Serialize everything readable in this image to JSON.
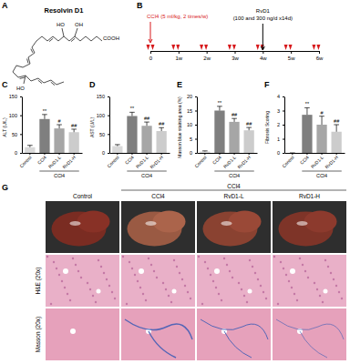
{
  "panel_labels": [
    "A",
    "B",
    "C",
    "D",
    "E",
    "F",
    "G"
  ],
  "structure": {
    "name": "Resolvin D1",
    "groups": [
      "HO",
      "OH",
      "HO",
      "COOH"
    ]
  },
  "timeline": {
    "agent1": "CCl4",
    "agent1_dose": "(5 ml/kg, 2 times/w)",
    "agent2": "RvD1",
    "agent2_dose": "(100 and 300 ng/d x14d)",
    "xlim": [
      0,
      6
    ],
    "xticks": [
      {
        "value": 0,
        "label": "0"
      },
      {
        "value": 1,
        "label": "1w"
      },
      {
        "value": 2,
        "label": "2w"
      },
      {
        "value": 3,
        "label": "3w"
      },
      {
        "value": 4,
        "label": "4w"
      },
      {
        "value": 5,
        "label": "5w"
      },
      {
        "value": 6,
        "label": "6w"
      }
    ],
    "injections": [
      0,
      0.9,
      1.9,
      2.9,
      3.9,
      4.9,
      5.9
    ],
    "treatment_start": 4
  },
  "chart_data": [
    {
      "type": "bar",
      "y_label": "ALT (U/L)",
      "categories": [
        "Control",
        "CCl4",
        "RvD1-L",
        "RvD1-H"
      ],
      "group_label": "CCl4",
      "values": [
        15,
        90,
        65,
        55
      ],
      "errors": [
        5,
        12,
        10,
        8
      ],
      "colors": [
        "#d9d9d9",
        "#7f7f7f",
        "#a6a6a6",
        "#cccccc"
      ],
      "ylim": [
        0,
        150
      ],
      "yticks": [
        0,
        50,
        100,
        150
      ],
      "significance": [
        null,
        "**",
        "#",
        "##"
      ]
    },
    {
      "type": "bar",
      "y_label": "AST (U/L)",
      "categories": [
        "Control",
        "CCl4",
        "RvD1-L",
        "RvD1-H"
      ],
      "group_label": "CCl4",
      "values": [
        18,
        98,
        72,
        58
      ],
      "errors": [
        4,
        10,
        10,
        9
      ],
      "colors": [
        "#d9d9d9",
        "#7f7f7f",
        "#a6a6a6",
        "#cccccc"
      ],
      "ylim": [
        0,
        150
      ],
      "yticks": [
        0,
        50,
        100,
        150
      ],
      "significance": [
        null,
        "**",
        "##",
        "##"
      ]
    },
    {
      "type": "bar",
      "y_label": "Masson blue staining area (%)",
      "categories": [
        "Control",
        "CCl4",
        "RvD1-L",
        "RvD1-H"
      ],
      "group_label": "CCl4",
      "values": [
        0.5,
        15,
        11,
        8
      ],
      "errors": [
        0.2,
        1.5,
        1.2,
        1
      ],
      "colors": [
        "#d9d9d9",
        "#7f7f7f",
        "#a6a6a6",
        "#cccccc"
      ],
      "ylim": [
        0,
        20
      ],
      "yticks": [
        0,
        5,
        10,
        15,
        20
      ],
      "significance": [
        null,
        "**",
        "##",
        "##"
      ]
    },
    {
      "type": "bar",
      "y_label": "Fibrosis Scoring",
      "categories": [
        "Control",
        "CCl4",
        "RvD1-L",
        "RvD1-H"
      ],
      "group_label": "CCl4",
      "values": [
        0,
        2.7,
        2,
        1.5
      ],
      "errors": [
        0,
        0.5,
        0.6,
        0.5
      ],
      "colors": [
        "#d9d9d9",
        "#7f7f7f",
        "#a6a6a6",
        "#cccccc"
      ],
      "ylim": [
        0,
        4
      ],
      "yticks": [
        0,
        1,
        2,
        3,
        4
      ],
      "significance": [
        null,
        "**",
        "#",
        "##"
      ]
    }
  ],
  "images": {
    "group_label": "CCl4",
    "columns": [
      "Control",
      "CCl4",
      "RvD1-L",
      "RvD1-H"
    ],
    "rows": [
      "H&E (20x)",
      "Masson (20x)"
    ]
  }
}
